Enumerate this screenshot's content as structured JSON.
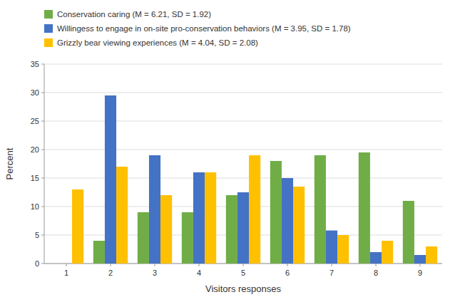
{
  "chart_data": {
    "type": "bar",
    "categories": [
      1,
      2,
      3,
      4,
      5,
      6,
      7,
      8,
      9
    ],
    "series": [
      {
        "name": "Conservation caring (M = 6.21, SD = 1.92)",
        "color": "#70AD47",
        "values": [
          0,
          4,
          9,
          9,
          12,
          18,
          19,
          19.5,
          11
        ]
      },
      {
        "name": "Willingess to engage in on-site pro-conservation behaviors (M = 3.95, SD = 1.78)",
        "color": "#4472C4",
        "values": [
          0,
          29.5,
          19,
          16,
          12.5,
          15,
          5.8,
          2,
          1.5
        ]
      },
      {
        "name": "Grizzly bear viewing experiences (M = 4.04, SD = 2.08)",
        "color": "#FFC000",
        "values": [
          13,
          17,
          12,
          16,
          19,
          13.5,
          5,
          4,
          3
        ]
      }
    ],
    "xlabel": "Visitors responses",
    "ylabel": "Percent",
    "ylim": [
      0,
      35
    ],
    "yticks": [
      0,
      5,
      10,
      15,
      20,
      25,
      30,
      35
    ],
    "grid": true,
    "legend": "top"
  }
}
